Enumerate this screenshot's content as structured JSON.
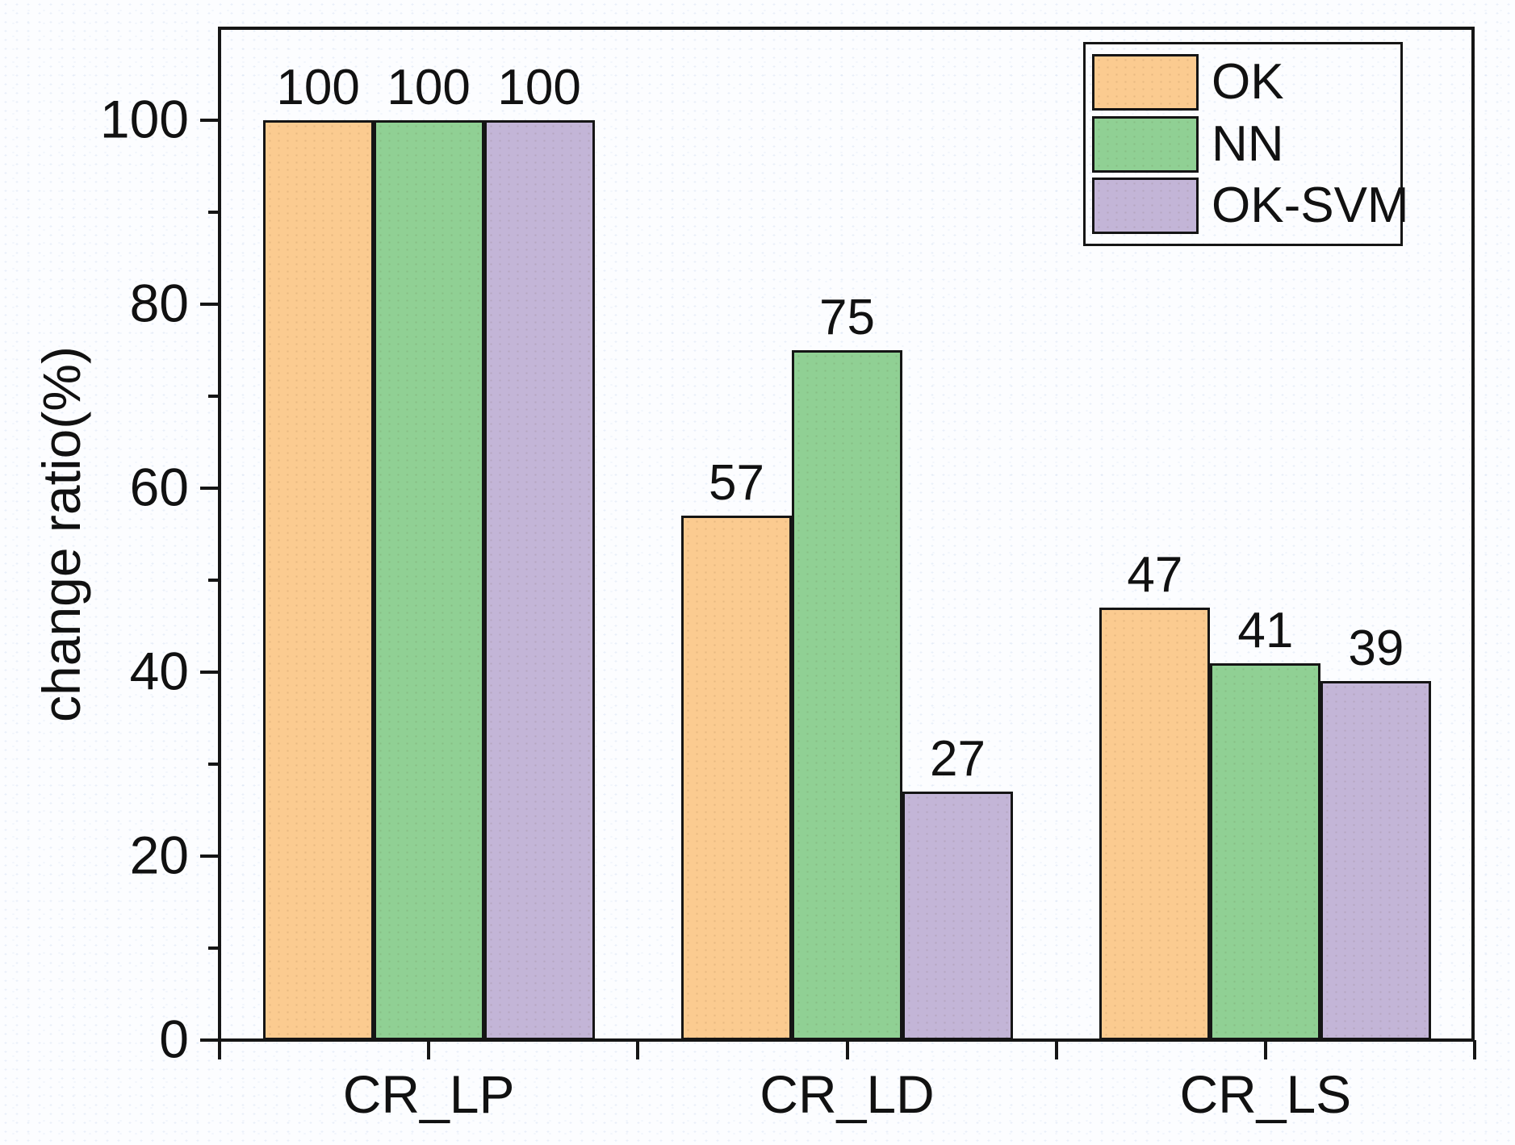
{
  "chart_data": {
    "type": "bar",
    "title": "",
    "categories": [
      "CR_LP",
      "CR_LD",
      "CR_LS"
    ],
    "series": [
      {
        "name": "OK",
        "color": "#fbcb90",
        "values": [
          100,
          57,
          47
        ]
      },
      {
        "name": "NN",
        "color": "#90d094",
        "values": [
          100,
          75,
          41
        ]
      },
      {
        "name": "OK-SVM",
        "color": "#c3b5d7",
        "values": [
          100,
          27,
          39
        ]
      }
    ],
    "xlabel": "",
    "ylabel": "change ratio(%)",
    "ylim": [
      0,
      110
    ],
    "yticks": [
      0,
      20,
      40,
      60,
      80,
      100
    ],
    "minor_yticks": [
      10,
      30,
      50,
      70,
      90
    ],
    "grid": false,
    "value_labels_shown": true,
    "legend_position": "top-right",
    "axis_color": "#151515",
    "text_color": "#111111"
  }
}
